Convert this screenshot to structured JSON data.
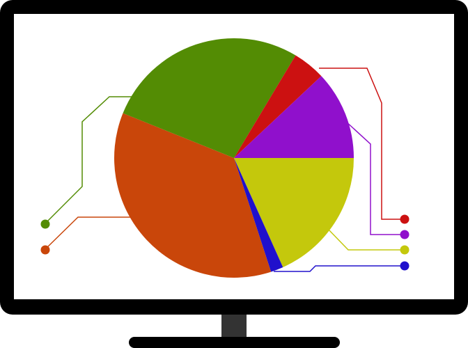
{
  "illustration": {
    "monitor_color": "#000000",
    "stand_color": "#333333",
    "screen_color": "#ffffff"
  },
  "chart_data": {
    "type": "pie",
    "start_angle_deg": 0,
    "direction": "clockwise",
    "slices": [
      {
        "key": "yellow",
        "value": 18.3,
        "color": "#c4c80c"
      },
      {
        "key": "blue",
        "value": 1.7,
        "color": "#2010cc"
      },
      {
        "key": "orange",
        "value": 36.1,
        "color": "#c9460a"
      },
      {
        "key": "green",
        "value": 27.5,
        "color": "#538c04"
      },
      {
        "key": "red",
        "value": 4.4,
        "color": "#cc1111"
      },
      {
        "key": "purple",
        "value": 12.0,
        "color": "#9010cc"
      }
    ]
  }
}
